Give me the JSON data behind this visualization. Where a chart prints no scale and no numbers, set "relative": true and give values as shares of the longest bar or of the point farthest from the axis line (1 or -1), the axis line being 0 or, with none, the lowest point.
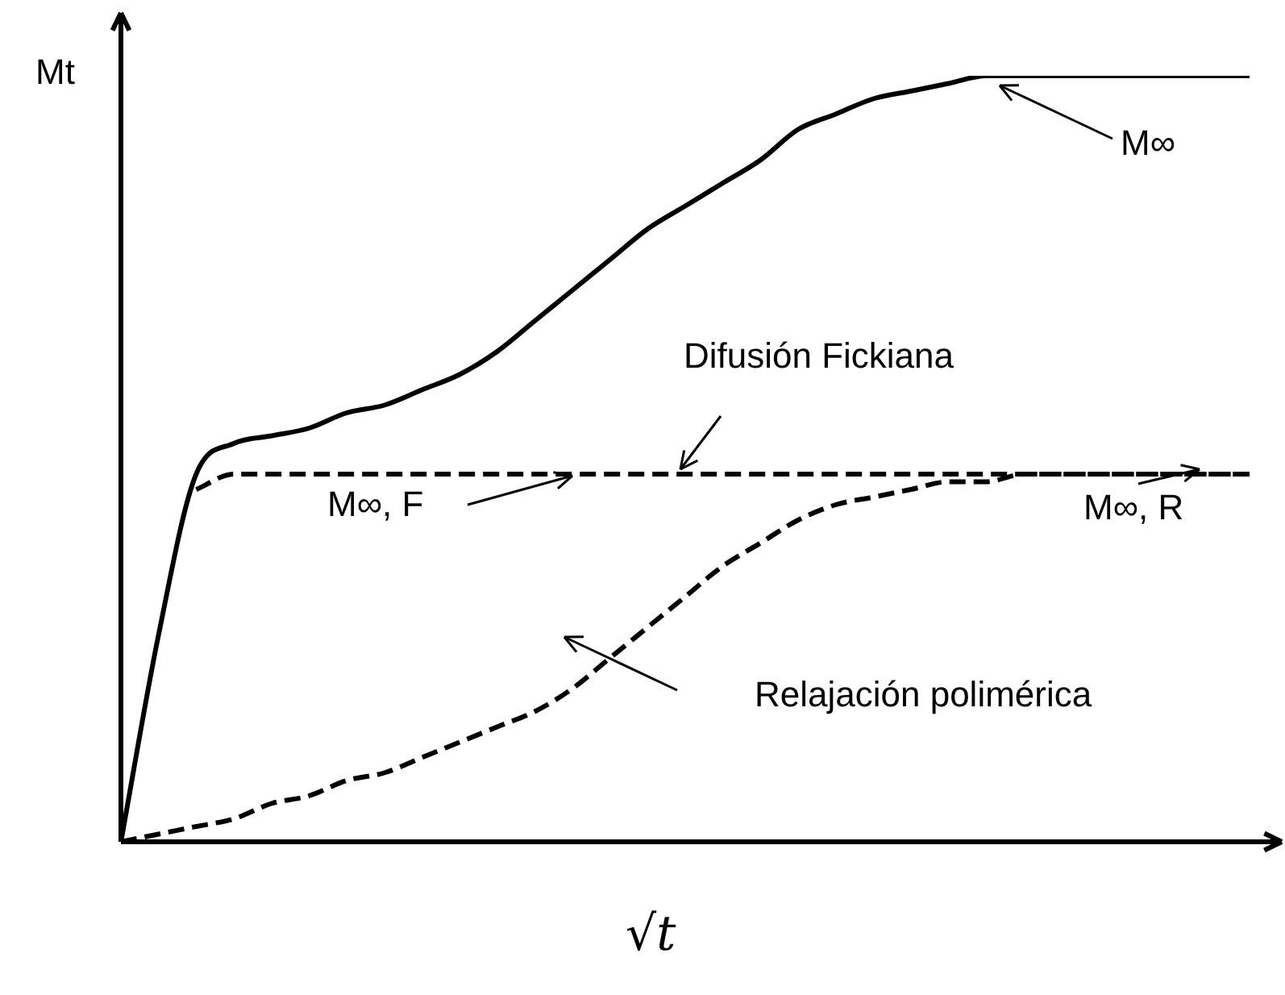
{
  "chart_data": {
    "type": "line",
    "relative": true,
    "xlabel": "√t",
    "ylabel": "Mt",
    "legend": false,
    "tick_labels": false,
    "marker": "none",
    "categories": [
      null,
      null,
      null,
      null,
      null,
      null,
      null,
      null,
      null,
      null,
      null,
      null,
      null,
      null,
      null,
      null,
      null,
      null,
      null,
      null,
      null,
      null,
      null,
      null,
      null,
      null,
      null,
      null,
      null,
      null,
      null
    ],
    "series": [
      {
        "color": "#000000",
        "line_style": "solid",
        "values": [
          0,
          0.27,
          0.48,
          0.52,
          0.53,
          0.54,
          0.56,
          0.57,
          0.59,
          0.61,
          0.64,
          0.68,
          0.72,
          0.76,
          0.8,
          0.83,
          0.86,
          0.89,
          0.93,
          0.95,
          0.97,
          0.98,
          0.99,
          1,
          1,
          1,
          1,
          1,
          1,
          1,
          1
        ]
      },
      {
        "color": "#000000",
        "line_style": "dashed",
        "values": [
          null,
          null,
          0.46,
          0.48,
          0.48,
          0.48,
          0.48,
          0.48,
          0.48,
          0.48,
          0.48,
          0.48,
          0.48,
          0.48,
          0.48,
          0.48,
          0.48,
          0.48,
          0.48,
          0.48,
          0.48,
          0.48,
          0.48,
          0.48,
          0.48,
          0.48,
          0.48,
          0.48,
          0.48,
          0.48,
          0.48
        ]
      },
      {
        "color": "#000000",
        "line_style": "dashed",
        "values": [
          0,
          0.01,
          0.02,
          0.03,
          0.05,
          0.06,
          0.08,
          0.09,
          0.11,
          0.13,
          0.15,
          0.17,
          0.2,
          0.24,
          0.28,
          0.32,
          0.36,
          0.39,
          0.42,
          0.44,
          0.45,
          0.46,
          0.47,
          0.47,
          0.48,
          0.48,
          0.48,
          0.48,
          0.48,
          0.48,
          0.48
        ]
      }
    ],
    "annotations": [
      "M∞",
      "Difusión Fickiana",
      "M∞, F",
      "M∞, R",
      "Relajación polimérica"
    ]
  }
}
